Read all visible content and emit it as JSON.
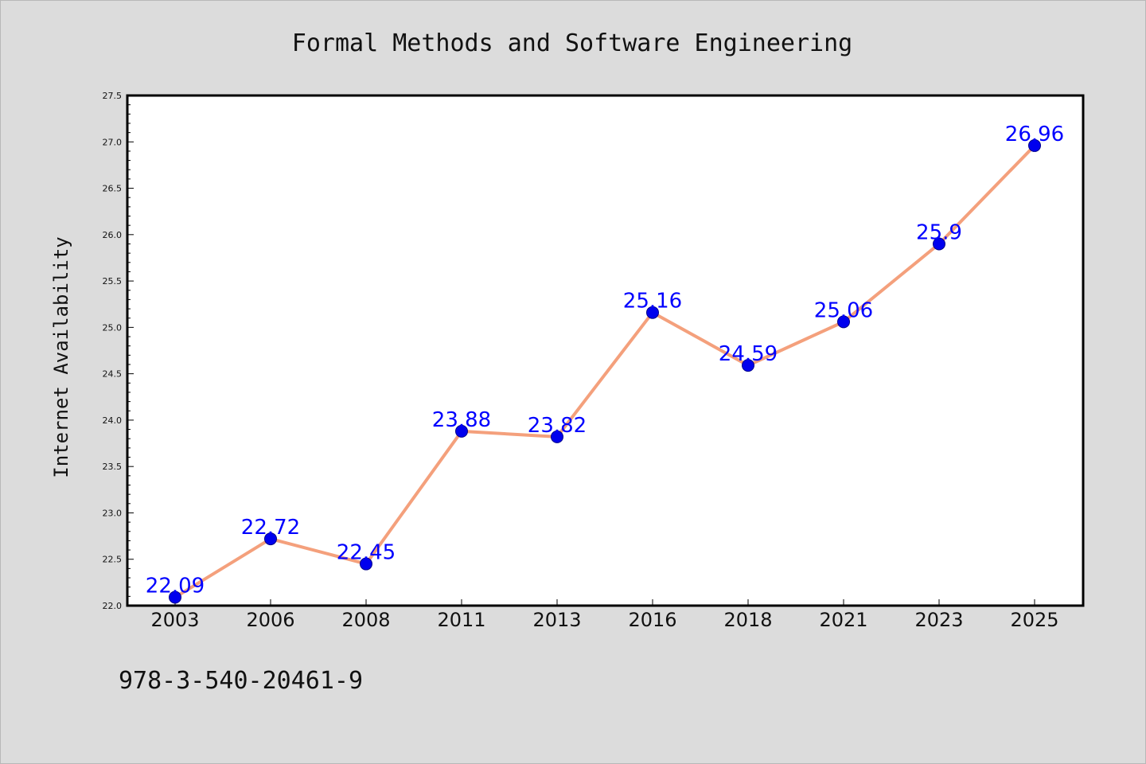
{
  "chart_data": {
    "type": "line",
    "title": "Formal Methods and Software Engineering",
    "ylabel": "Internet Availability",
    "xlabel": "",
    "categories": [
      "2003",
      "2006",
      "2008",
      "2011",
      "2013",
      "2016",
      "2018",
      "2021",
      "2023",
      "2025"
    ],
    "series": [
      {
        "values": [
          22.09,
          22.72,
          22.45,
          23.88,
          23.82,
          25.16,
          24.59,
          25.06,
          25.9,
          26.96
        ],
        "labels": [
          "22.09",
          "22.72",
          "22.45",
          "23.88",
          "23.82",
          "25.16",
          "24.59",
          "25.06",
          "25.9",
          "26.96"
        ],
        "line_color": "#f4a07c",
        "marker_color": "#0000ee",
        "label_color": "#0000ff"
      }
    ],
    "ylim": [
      22.0,
      27.5
    ],
    "yticks": [
      "22.0",
      "22.5",
      "23.0",
      "23.5",
      "24.0",
      "24.5",
      "25.0",
      "25.5",
      "26.0",
      "26.5",
      "27.0",
      "27.5"
    ],
    "grid": false,
    "legend": "none",
    "background": "#dcdcdc",
    "plot_background": "#ffffff"
  },
  "annotation": "978-3-540-20461-9"
}
